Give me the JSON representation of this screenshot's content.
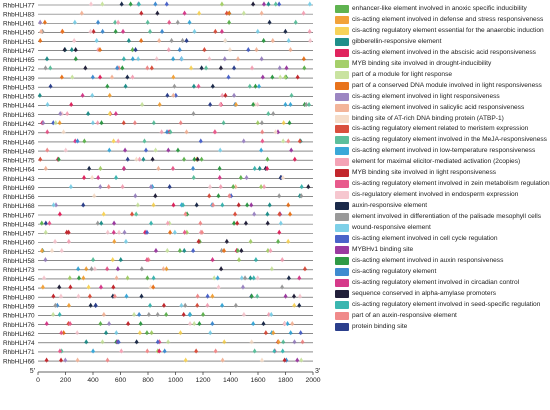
{
  "chart_data": {
    "type": "element-map",
    "x_axis": {
      "range": [
        0,
        2000
      ],
      "ticks": [
        0,
        200,
        400,
        600,
        800,
        1000,
        1200,
        1400,
        1600,
        1800,
        2000
      ],
      "tick_labels": [
        "0",
        "200",
        "400",
        "600",
        "800",
        "1000",
        "1200",
        "1400",
        "1600",
        "1800",
        "2000"
      ],
      "left_label": "5'",
      "right_label": "3'"
    },
    "genes": [
      "RhbHLH77",
      "RhbHLH83",
      "RhbHLH61",
      "RhbHLH50",
      "RhbHLH51",
      "RhbHLH47",
      "RhbHLH65",
      "RhbHLH72",
      "RhbHLH39",
      "RhbHLH53",
      "RhbHLH55",
      "RhbHLH44",
      "RhbHLH63",
      "RhbHLH42",
      "RhbHLH79",
      "RhbHLH46",
      "RhbHLH49",
      "RhbHLH75",
      "RhbHLH64",
      "RhbHLH43",
      "RhbHLH69",
      "RhbHLH56",
      "RhbHLH68",
      "RhbHLH67",
      "RhbHLH48",
      "RhbHLH57",
      "RhbHLH60",
      "RhbHLH52",
      "RhbHLH58",
      "RhbHLH73",
      "RhbHLH45",
      "RhbHLH54",
      "RhbHLH80",
      "RhbHLH59",
      "RhbHLH70",
      "RhbHLH76",
      "RhbHLH62",
      "RhbHLH74",
      "RhbHLH71",
      "RhbHLH66"
    ],
    "legend": [
      {
        "label": "enhancer-like element involved in anoxic specific inducibility",
        "color": "#5fb350"
      },
      {
        "label": "cis-acting element involved in defense and stress responsiveness",
        "color": "#f2a23a"
      },
      {
        "label": "cis-acting regulatory element essential for the anaerobic induction",
        "color": "#f7d35a"
      },
      {
        "label": "gibberellin-responsive element",
        "color": "#1f8f8a"
      },
      {
        "label": "cis-acting element involved in the abscisic acid responsiveness",
        "color": "#e0245e"
      },
      {
        "label": "MYB binding site involved in drought-inducibility",
        "color": "#a5cf6a"
      },
      {
        "label": "part of a module for light response",
        "color": "#c9e3a0"
      },
      {
        "label": "part of a conserved DNA module involved in light responsiveness",
        "color": "#e8731c"
      },
      {
        "label": "cis-acting element involved in light responsiveness",
        "color": "#9c86c2"
      },
      {
        "label": "cis-acting element involved in salicylic acid responsiveness",
        "color": "#f3b59a"
      },
      {
        "label": "binding site of AT-rich DNA binding protein (ATBP-1)",
        "color": "#f6ddc9"
      },
      {
        "label": "cis-acting regulatory element related to meristem expression",
        "color": "#d94f3d"
      },
      {
        "label": "cis-acting regulatory element involved in the MeJA-responsiveness",
        "color": "#5cbf9c"
      },
      {
        "label": "cis-acting element involved in low-temperature responsiveness",
        "color": "#3aa8d8"
      },
      {
        "label": "element for maximal elicitor-mediated activation (2copies)",
        "color": "#f4a3b6"
      },
      {
        "label": "MYB binding site involved in light responsiveness",
        "color": "#c2272d"
      },
      {
        "label": "cis-acting regulatory element involved in zein metabolism regulation",
        "color": "#e85a8c"
      },
      {
        "label": "cis-regulatory element involved in endosperm expression",
        "color": "#f6c7cf"
      },
      {
        "label": "auxin-responsive element",
        "color": "#1b2a4a"
      },
      {
        "label": "element involved in differentiation of the palisade mesophyll cells",
        "color": "#9a9a9a"
      },
      {
        "label": "wound-responsive element",
        "color": "#7ed0e8"
      },
      {
        "label": "cis-acting element involved in cell cycle regulation",
        "color": "#4a63c9"
      },
      {
        "label": "MYBHv1 binding site",
        "color": "#9b3aa0"
      },
      {
        "label": "cis-acting element involved in auxin responsiveness",
        "color": "#2f9a45"
      },
      {
        "label": "cis-acting regulatory element",
        "color": "#3f8bd0"
      },
      {
        "label": "cis-acting regulatory element involved in circadian control",
        "color": "#d63a8a"
      },
      {
        "label": "sequence conserved in alpha-amylase promoters",
        "color": "#22203a"
      },
      {
        "label": "cis-acting regulatory element involved in seed-specific regulation",
        "color": "#3bb6b0"
      },
      {
        "label": "part of an auxin-responsive element",
        "color": "#f08a8a"
      },
      {
        "label": "protein binding site",
        "color": "#2b3f8c"
      }
    ]
  }
}
